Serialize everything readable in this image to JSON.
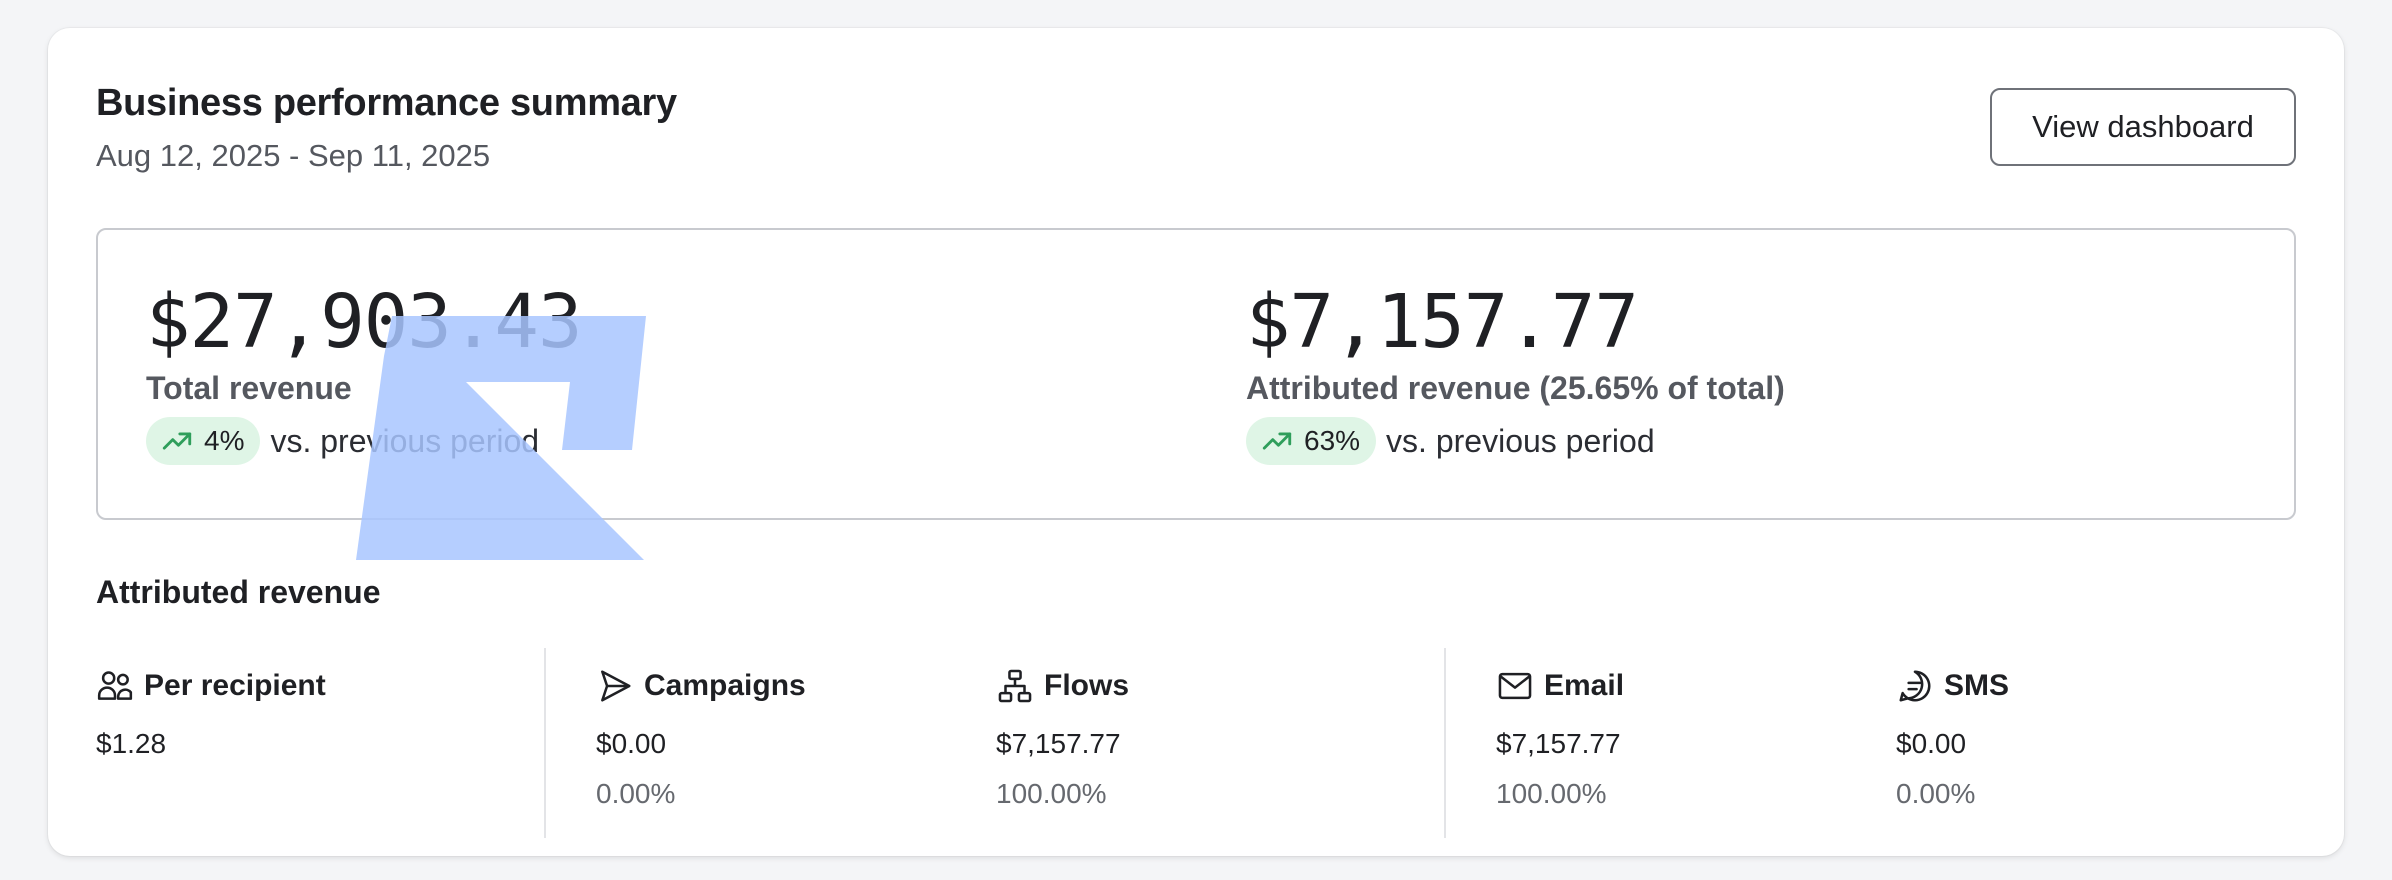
{
  "header": {
    "title": "Business performance summary",
    "date_range": "Aug 12, 2025 - Sep 11, 2025",
    "view_dashboard_label": "View dashboard"
  },
  "summary": {
    "total_revenue": {
      "value": "$27,903.43",
      "label": "Total revenue",
      "change": "4%",
      "change_suffix": "vs. previous period",
      "trend_icon": "trending-up-icon"
    },
    "attributed_revenue": {
      "value": "$7,157.77",
      "label": "Attributed revenue (25.65% of total)",
      "change": "63%",
      "change_suffix": "vs. previous period",
      "trend_icon": "trending-up-icon"
    }
  },
  "attributed_section": {
    "title": "Attributed revenue",
    "stats": [
      {
        "label": "Per recipient",
        "icon": "users-icon",
        "value": "$1.28",
        "percent": ""
      },
      {
        "label": "Campaigns",
        "icon": "send-icon",
        "value": "$0.00",
        "percent": "0.00%"
      },
      {
        "label": "Flows",
        "icon": "flow-icon",
        "value": "$7,157.77",
        "percent": "100.00%"
      },
      {
        "label": "Email",
        "icon": "mail-icon",
        "value": "$7,157.77",
        "percent": "100.00%"
      },
      {
        "label": "SMS",
        "icon": "message-icon",
        "value": "$0.00",
        "percent": "0.00%"
      }
    ]
  },
  "colors": {
    "trend_badge_bg": "#dff5e6",
    "trend_icon": "#2f9e5b",
    "watermark": "#a8c6ff"
  }
}
